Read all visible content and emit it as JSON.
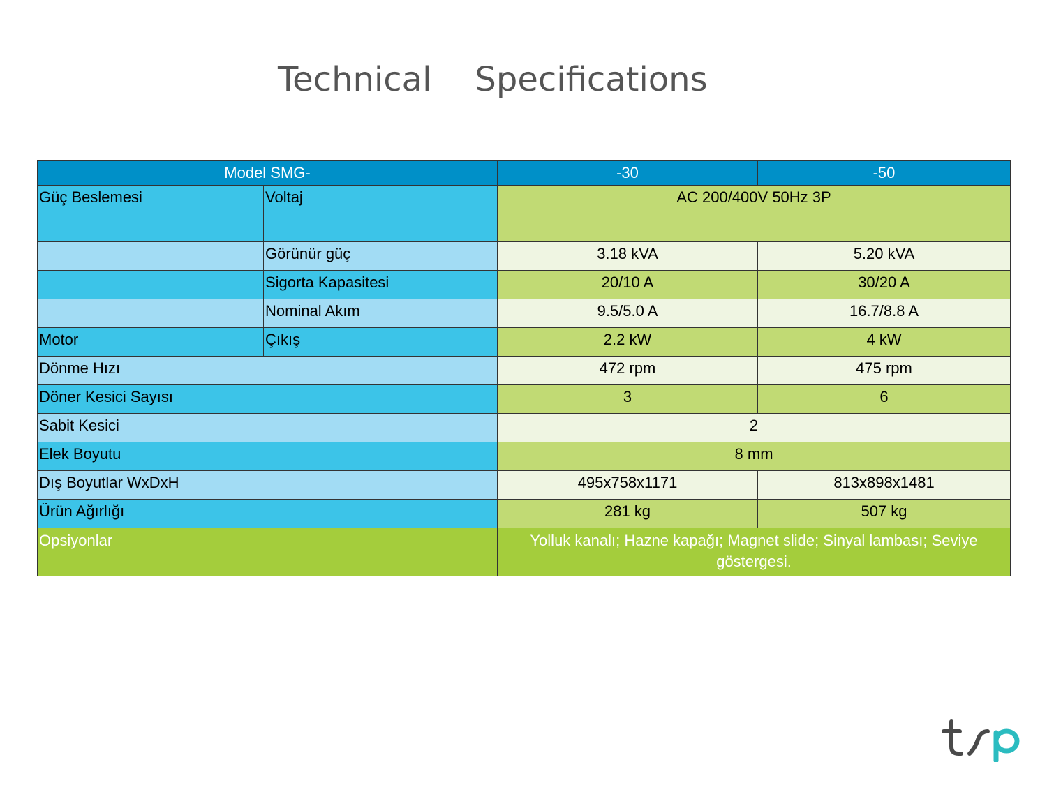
{
  "title": {
    "word1": "Technical",
    "word2": "Specifications"
  },
  "table": {
    "header": {
      "model": "Model SMG-",
      "col1": "-30",
      "col2": "-50"
    },
    "power": {
      "group": "Güç Beslemesi",
      "voltage_label": "Voltaj",
      "voltage_value": "AC 200/400V 50Hz 3P",
      "apparent_label": "Görünür güç",
      "apparent_30": "3.18 kVA",
      "apparent_50": "5.20 kVA",
      "fuse_label": "Sigorta Kapasitesi",
      "fuse_30": "20/10 A",
      "fuse_50": "30/20 A",
      "current_label": "Nominal Akım",
      "current_30": "9.5/5.0 A",
      "current_50": "16.7/8.8 A"
    },
    "motor": {
      "group": "Motor",
      "output_label": "Çıkış",
      "output_30": "2.2 kW",
      "output_50": "4 kW"
    },
    "speed": {
      "label": "Dönme Hızı",
      "v30": "472 rpm",
      "v50": "475 rpm"
    },
    "rotary": {
      "label": "Döner Kesici Sayısı",
      "v30": "3",
      "v50": "6"
    },
    "fixed": {
      "label": "Sabit Kesici",
      "value": "2"
    },
    "screen": {
      "label": "Elek Boyutu",
      "value": "8 mm"
    },
    "dims": {
      "label": "Dış Boyutlar WxDxH",
      "v30": "495x758x1171",
      "v50": "813x898x1481"
    },
    "weight": {
      "label": "Ürün Ağırlığı",
      "v30": "281 kg",
      "v50": "507 kg"
    },
    "options": {
      "label": "Opsiyonlar",
      "value": "Yolluk kanalı; Hazne kapağı; Magnet slide; Sinyal lambası; Seviye göstergesi."
    }
  },
  "logo": {
    "text": "tsp",
    "icon": "tsp-logo-icon",
    "color_dark": "#4a4a4a",
    "color_accent": "#2bbcc0"
  },
  "colors": {
    "header": "#0090c8",
    "blue_dark": "#3cc4e8",
    "blue_light": "#a2dcf4",
    "green_dark": "#c1da74",
    "green_light": "#eff5e2",
    "green_options": "#a4cd3c"
  }
}
